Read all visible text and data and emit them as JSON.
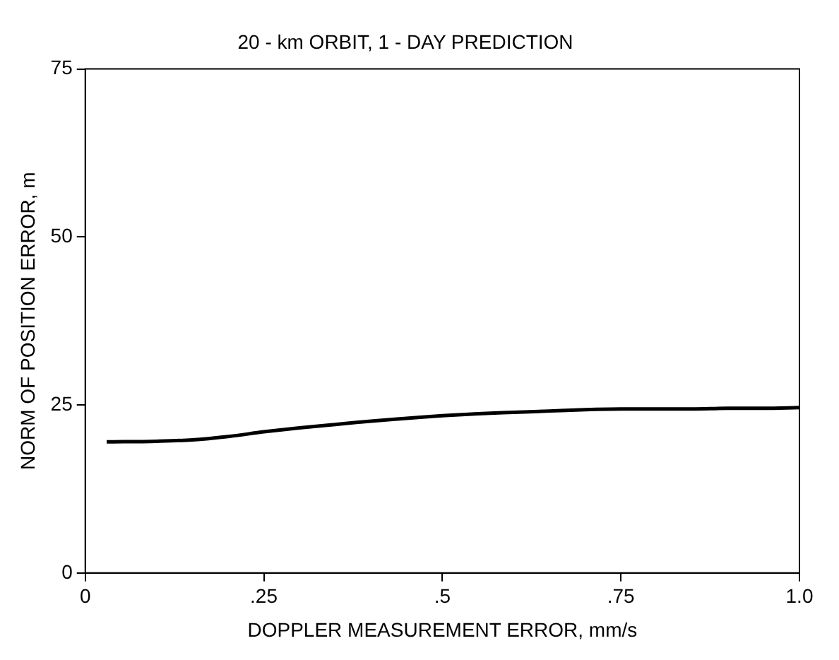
{
  "chart_data": {
    "type": "line",
    "title": "20 - km ORBIT, 1 - DAY PREDICTION",
    "xlabel": "DOPPLER MEASUREMENT ERROR, mm/s",
    "ylabel": "NORM OF POSITION ERROR, m",
    "x": [
      0.03,
      0.1,
      0.15,
      0.2,
      0.25,
      0.3,
      0.35,
      0.4,
      0.45,
      0.5,
      0.55,
      0.6,
      0.65,
      0.7,
      0.75,
      0.8,
      0.85,
      0.9,
      0.95,
      1.0
    ],
    "series": [
      {
        "color": "#000000",
        "values": [
          19.5,
          19.6,
          19.8,
          20.3,
          21,
          21.6,
          22.1,
          22.6,
          23,
          23.4,
          23.7,
          23.9,
          24.1,
          24.3,
          24.4,
          24.4,
          24.4,
          24.5,
          24.5,
          24.6
        ]
      }
    ],
    "xlim": [
      0,
      1
    ],
    "ylim": [
      0,
      75
    ],
    "xticks": [
      {
        "value": 0,
        "label": "0"
      },
      {
        "value": 0.25,
        "label": ".25"
      },
      {
        "value": 0.5,
        "label": ".5"
      },
      {
        "value": 0.75,
        "label": ".75"
      },
      {
        "value": 1,
        "label": "1.0"
      }
    ],
    "yticks": [
      0,
      25,
      50,
      75
    ],
    "grid": false,
    "legend": false,
    "marker": "none",
    "line_style": "solid"
  }
}
